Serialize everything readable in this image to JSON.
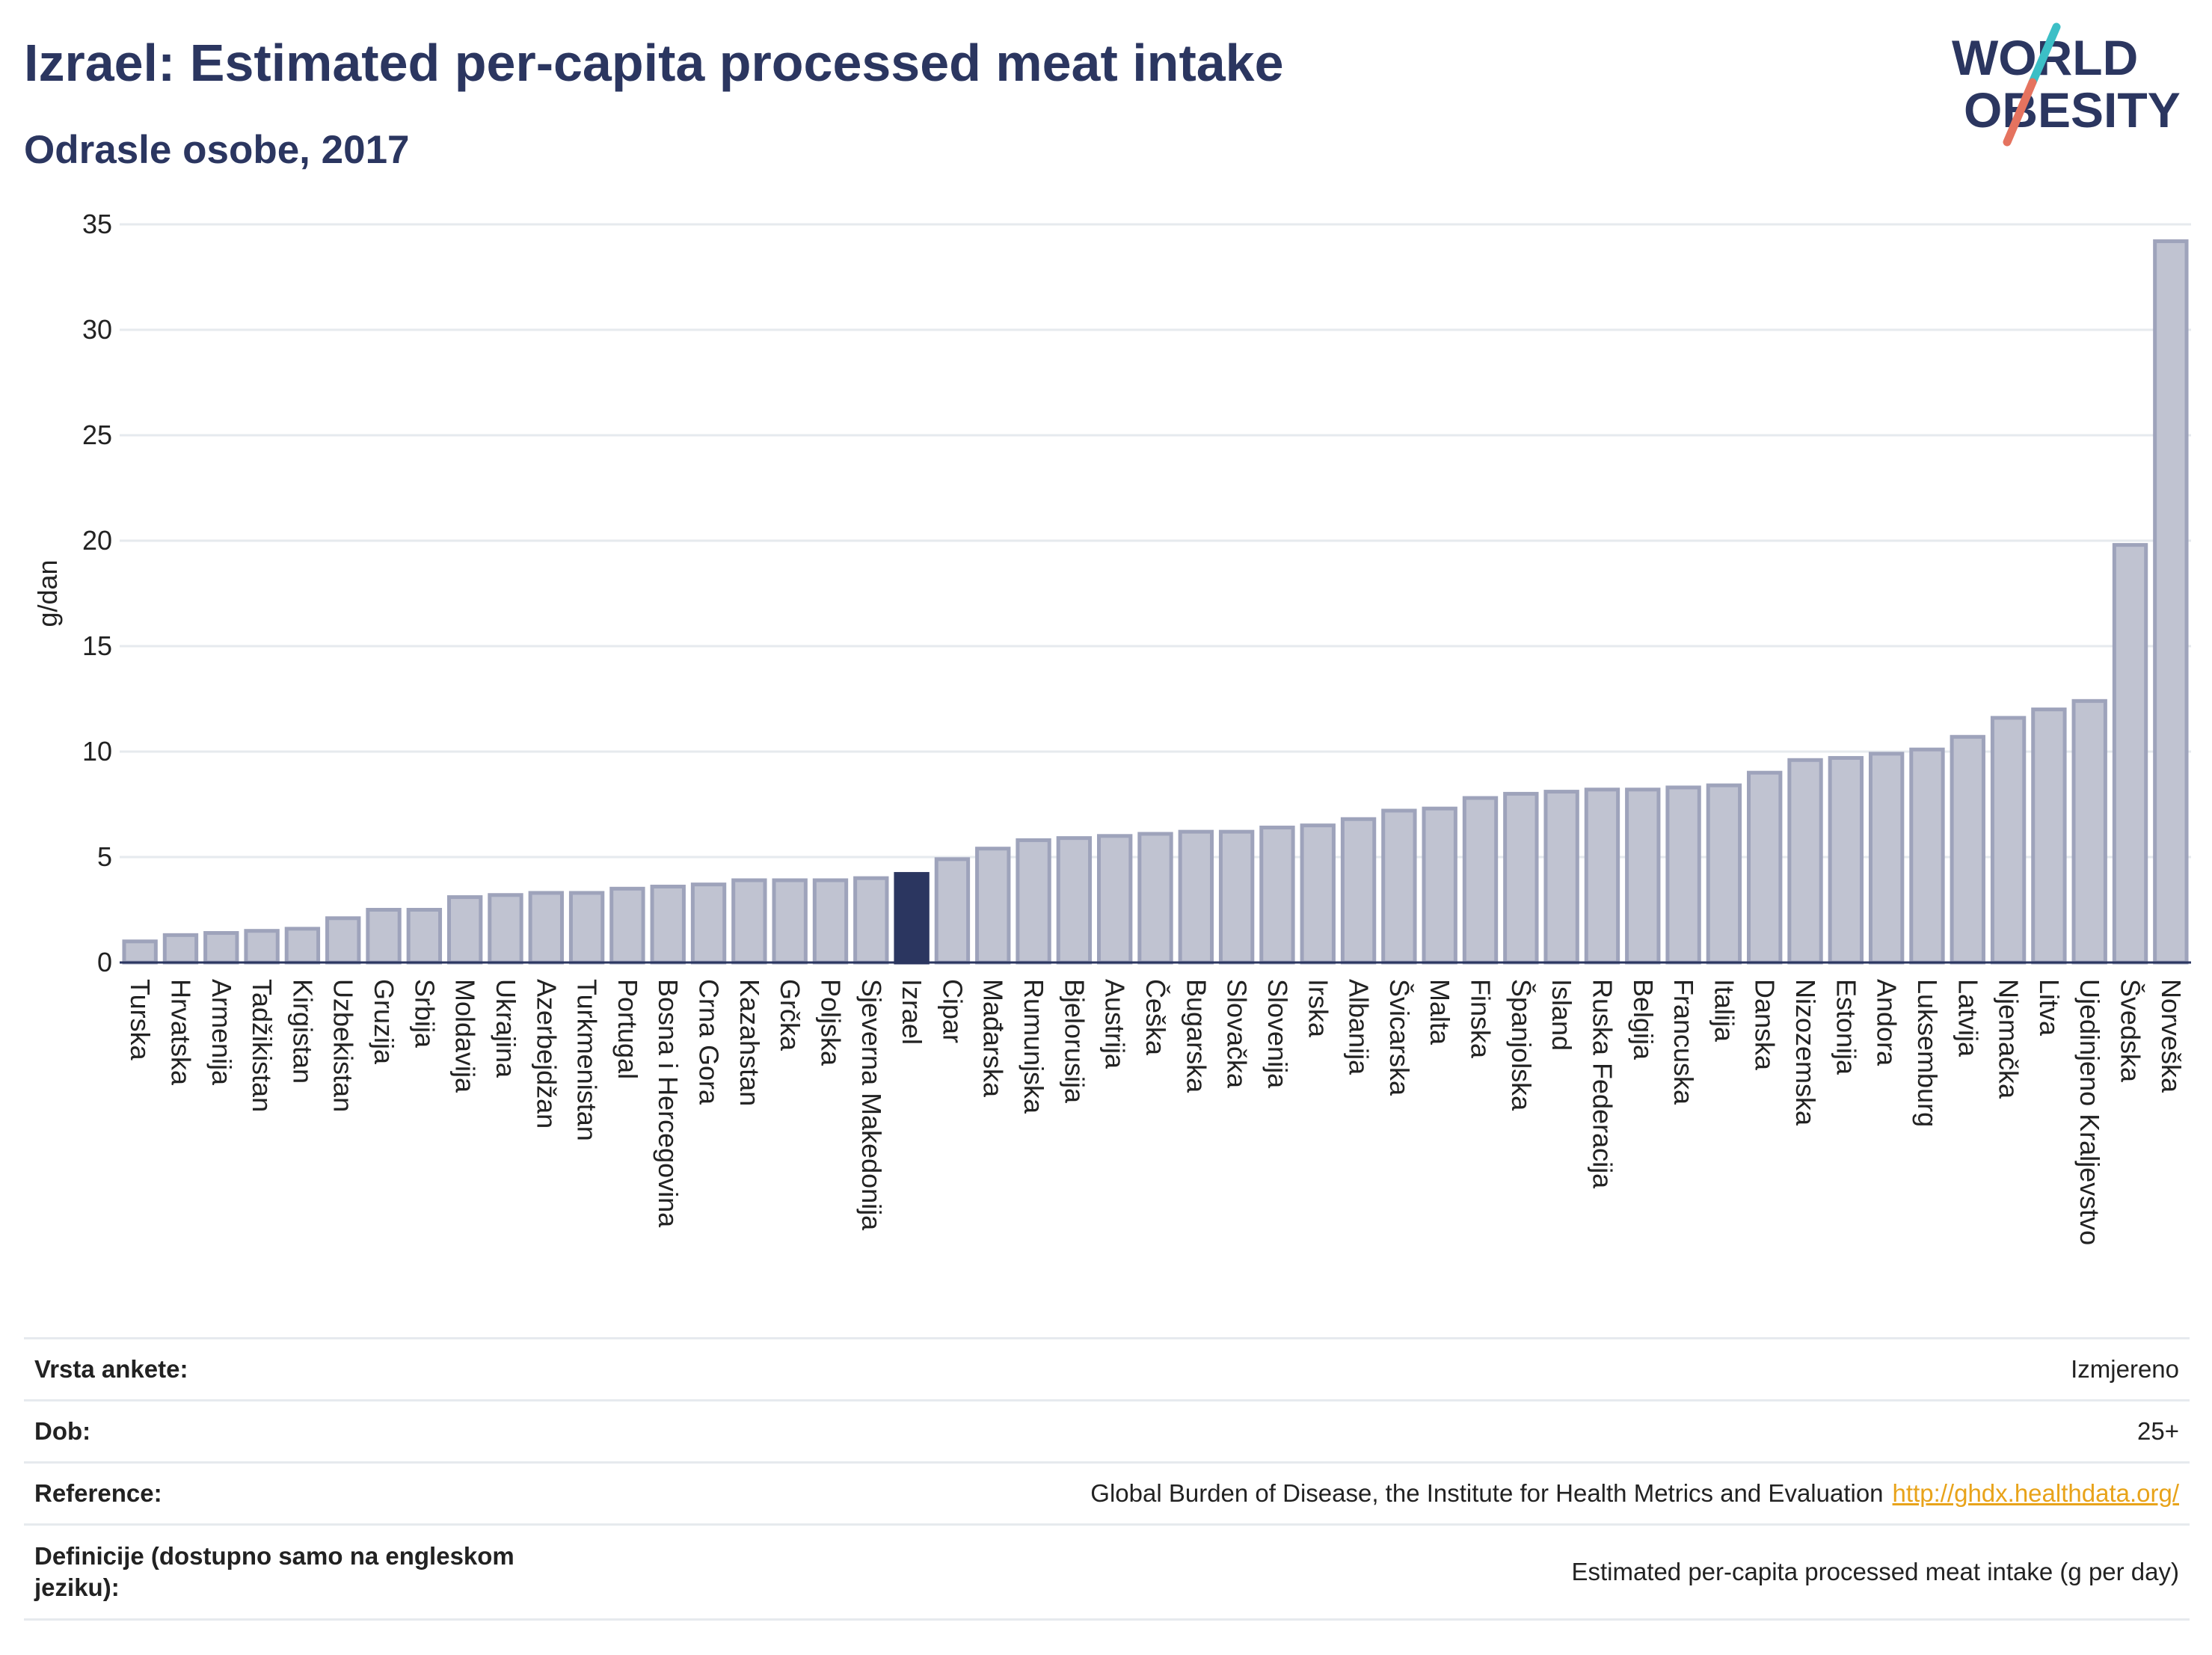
{
  "header": {
    "title": "Izrael: Estimated per-capita processed meat intake",
    "subtitle": "Odrasle osobe, 2017"
  },
  "logo": {
    "line1": "WORLD",
    "line2": "OBESITY",
    "colors": {
      "text": "#2b3660",
      "slash_teal": "#3cbfc6",
      "slash_red": "#e5735f"
    }
  },
  "colors": {
    "bar": "#c0c3d1",
    "bar_edge": "#9ea3bb",
    "highlight": "#2b3660",
    "axis_text": "#222222",
    "grid": "#e6eaee"
  },
  "chart_data": {
    "type": "bar",
    "ylabel": "g/dan",
    "ylim": [
      0,
      35
    ],
    "yticks": [
      0,
      5,
      10,
      15,
      20,
      25,
      30,
      35
    ],
    "grid": true,
    "highlight": "Izrael",
    "categories": [
      "Turska",
      "Hrvatska",
      "Armenija",
      "Tadžikistan",
      "Kirgistan",
      "Uzbekistan",
      "Gruzija",
      "Srbija",
      "Moldavija",
      "Ukrajina",
      "Azerbejdžan",
      "Turkmenistan",
      "Portugal",
      "Bosna i Hercegovina",
      "Crna Gora",
      "Kazahstan",
      "Grčka",
      "Poljska",
      "Sjeverna Makedonija",
      "Izrael",
      "Cipar",
      "Mađarska",
      "Rumunjska",
      "Bjelorusija",
      "Austrija",
      "Češka",
      "Bugarska",
      "Slovačka",
      "Slovenija",
      "Irska",
      "Albanija",
      "Švicarska",
      "Malta",
      "Finska",
      "Španjolska",
      "Island",
      "Ruska Federacija",
      "Belgija",
      "Francuska",
      "Italija",
      "Danska",
      "Nizozemska",
      "Estonija",
      "Andora",
      "Luksemburg",
      "Latvija",
      "Njemačka",
      "Litva",
      "Ujedinjeno Kraljevstvo",
      "Švedska",
      "Norveška"
    ],
    "values": [
      1.0,
      1.3,
      1.4,
      1.5,
      1.6,
      2.1,
      2.5,
      2.5,
      3.1,
      3.2,
      3.3,
      3.3,
      3.5,
      3.6,
      3.7,
      3.9,
      3.9,
      3.9,
      4.0,
      4.2,
      4.9,
      5.4,
      5.8,
      5.9,
      6.0,
      6.1,
      6.2,
      6.2,
      6.4,
      6.5,
      6.8,
      7.2,
      7.3,
      7.8,
      8.0,
      8.1,
      8.2,
      8.2,
      8.3,
      8.4,
      9.0,
      9.6,
      9.7,
      9.9,
      10.1,
      10.7,
      11.6,
      12.0,
      12.4,
      19.8,
      34.2
    ]
  },
  "info_table": [
    {
      "label": "Vrsta ankete:",
      "value": "Izmjereno"
    },
    {
      "label": "Dob:",
      "value": "25+"
    },
    {
      "label": "Reference:",
      "value": "Global Burden of Disease, the Institute for Health Metrics and Evaluation",
      "link": "http://ghdx.healthdata.org/"
    },
    {
      "label": "Definicije (dostupno samo na engleskom jeziku):",
      "value": "Estimated per-capita processed meat intake (g per day)"
    }
  ]
}
